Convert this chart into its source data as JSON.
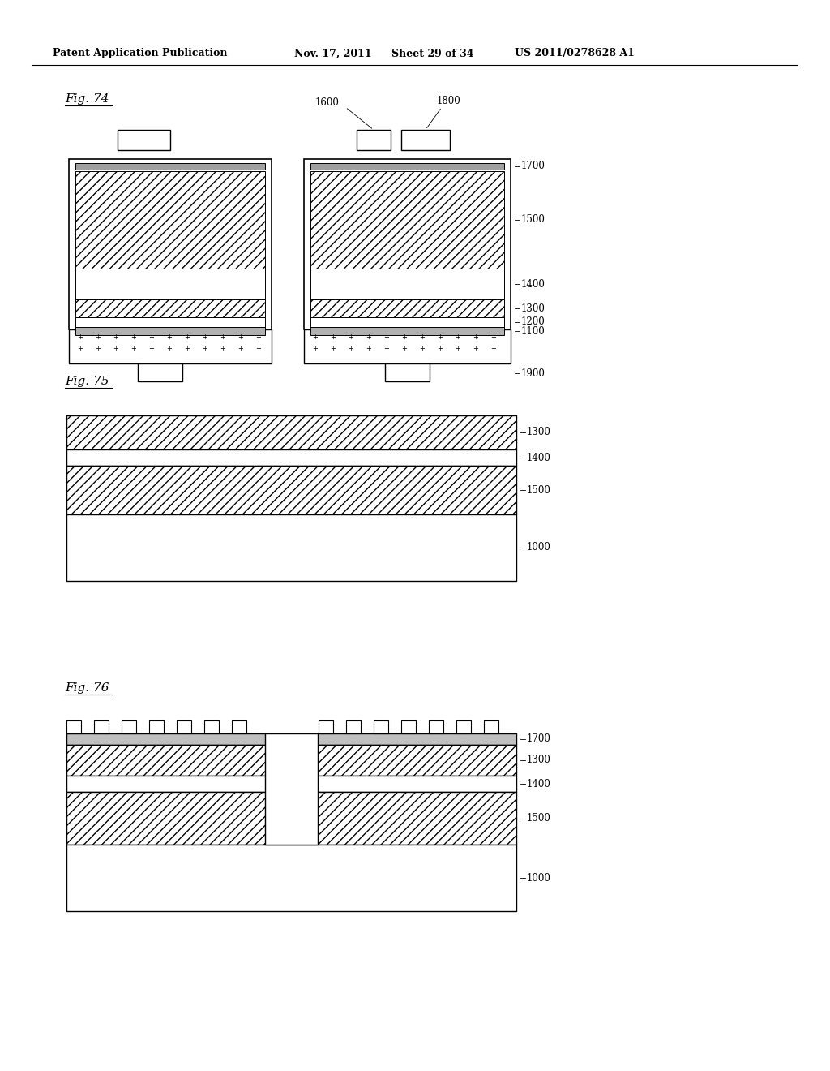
{
  "bg_color": "#ffffff",
  "header_text": "Patent Application Publication",
  "header_date": "Nov. 17, 2011",
  "header_sheet": "Sheet 29 of 34",
  "header_patent": "US 2011/0278628 A1",
  "hatch": "///",
  "lc": "black",
  "header_fs": 9,
  "label_fs": 11,
  "layer_fs": 8.5
}
